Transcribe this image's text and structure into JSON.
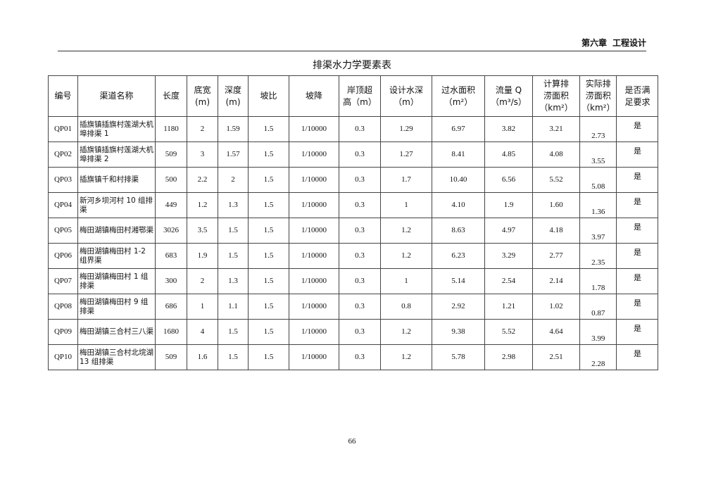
{
  "header": {
    "chapter": "第六章",
    "section": "工程设计"
  },
  "title": "排渠水力学要素表",
  "columns": [
    "编号",
    "渠道名称",
    "长度",
    "底宽\n(m)",
    "深度\n(m)",
    "坡比",
    "坡降",
    "岸顶超\n高（m）",
    "设计水深\n（m）",
    "过水面积\n（m²）",
    "流量 Q\n（m³/s）",
    "计算排\n涝面积\n（km²）",
    "实际排\n涝面积\n（km²）",
    "是否满\n足要求"
  ],
  "rows": [
    [
      "QP01",
      "插旗镇插旗村莲湖大机埠排渠 1",
      "1180",
      "2",
      "1.59",
      "1.5",
      "1/10000",
      "0.3",
      "1.29",
      "6.97",
      "3.82",
      "3.21",
      "2.73",
      "是"
    ],
    [
      "QP02",
      "插旗镇插旗村莲湖大机埠排渠 2",
      "509",
      "3",
      "1.57",
      "1.5",
      "1/10000",
      "0.3",
      "1.27",
      "8.41",
      "4.85",
      "4.08",
      "3.55",
      "是"
    ],
    [
      "QP03",
      "插旗镇千和村排渠",
      "500",
      "2.2",
      "2",
      "1.5",
      "1/10000",
      "0.3",
      "1.7",
      "10.40",
      "6.56",
      "5.52",
      "5.08",
      "是"
    ],
    [
      "QP04",
      "新河乡坝河村 10 组排渠",
      "449",
      "1.2",
      "1.3",
      "1.5",
      "1/10000",
      "0.3",
      "1",
      "4.10",
      "1.9",
      "1.60",
      "1.36",
      "是"
    ],
    [
      "QP05",
      "梅田湖镇梅田村湘鄂渠",
      "3026",
      "3.5",
      "1.5",
      "1.5",
      "1/10000",
      "0.3",
      "1.2",
      "8.63",
      "4.97",
      "4.18",
      "3.97",
      "是"
    ],
    [
      "QP06",
      "梅田湖镇梅田村 1-2 组界渠",
      "683",
      "1.9",
      "1.5",
      "1.5",
      "1/10000",
      "0.3",
      "1.2",
      "6.23",
      "3.29",
      "2.77",
      "2.35",
      "是"
    ],
    [
      "QP07",
      "梅田湖镇梅田村 1 组排渠",
      "300",
      "2",
      "1.3",
      "1.5",
      "1/10000",
      "0.3",
      "1",
      "5.14",
      "2.54",
      "2.14",
      "1.78",
      "是"
    ],
    [
      "QP08",
      "梅田湖镇梅田村 9 组排渠",
      "686",
      "1",
      "1.1",
      "1.5",
      "1/10000",
      "0.3",
      "0.8",
      "2.92",
      "1.21",
      "1.02",
      "0.87",
      "是"
    ],
    [
      "QP09",
      "梅田湖镇三合村三八渠",
      "1680",
      "4",
      "1.5",
      "1.5",
      "1/10000",
      "0.3",
      "1.2",
      "9.38",
      "5.52",
      "4.64",
      "3.99",
      "是"
    ],
    [
      "QP10",
      "梅田湖镇三合村北垸湖 13 组排渠",
      "509",
      "1.6",
      "1.5",
      "1.5",
      "1/10000",
      "0.3",
      "1.2",
      "5.78",
      "2.98",
      "2.51",
      "2.28",
      "是"
    ]
  ],
  "page_number": "66"
}
